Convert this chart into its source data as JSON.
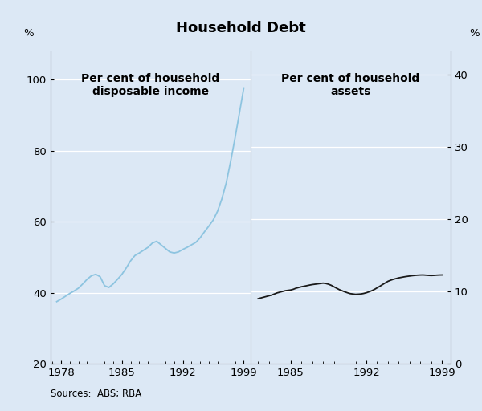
{
  "title": "Household Debt",
  "background_color": "#dce8f5",
  "left_label": "Per cent of household\ndisposable income",
  "right_label": "Per cent of household\nassets",
  "left_ylabel": "%",
  "right_ylabel": "%",
  "source_text": "Sources:  ABS; RBA",
  "left_ylim": [
    20,
    108
  ],
  "left_yticks": [
    20,
    40,
    60,
    80,
    100
  ],
  "right_ylim": [
    0,
    43.2
  ],
  "right_yticks": [
    0,
    10,
    20,
    30,
    40
  ],
  "left_xlim": [
    1976.8,
    1999.8
  ],
  "right_xlim": [
    1981.3,
    1999.8
  ],
  "left_xticks": [
    1978,
    1985,
    1992,
    1999
  ],
  "right_xticks": [
    1985,
    1992,
    1999
  ],
  "left_line_color": "#8dc4e0",
  "right_line_color": "#1a1a1a",
  "left_x": [
    1977.5,
    1978.0,
    1978.5,
    1979.0,
    1979.5,
    1980.0,
    1980.5,
    1981.0,
    1981.5,
    1982.0,
    1982.5,
    1983.0,
    1983.5,
    1984.0,
    1984.5,
    1985.0,
    1985.5,
    1986.0,
    1986.5,
    1987.0,
    1987.5,
    1988.0,
    1988.5,
    1989.0,
    1989.5,
    1990.0,
    1990.5,
    1991.0,
    1991.5,
    1992.0,
    1992.5,
    1993.0,
    1993.5,
    1994.0,
    1994.5,
    1995.0,
    1995.5,
    1996.0,
    1996.5,
    1997.0,
    1997.5,
    1998.0,
    1998.5,
    1999.0
  ],
  "left_y": [
    37.5,
    38.2,
    39.0,
    39.8,
    40.5,
    41.3,
    42.5,
    43.8,
    44.8,
    45.2,
    44.5,
    42.0,
    41.5,
    42.5,
    43.8,
    45.2,
    47.0,
    49.0,
    50.5,
    51.2,
    52.0,
    52.8,
    54.0,
    54.5,
    53.5,
    52.5,
    51.5,
    51.2,
    51.5,
    52.2,
    52.8,
    53.5,
    54.2,
    55.5,
    57.2,
    58.8,
    60.5,
    63.0,
    66.5,
    71.0,
    77.0,
    83.5,
    90.5,
    97.5
  ],
  "right_x": [
    1982.0,
    1982.25,
    1982.5,
    1982.75,
    1983.0,
    1983.25,
    1983.5,
    1983.75,
    1984.0,
    1984.25,
    1984.5,
    1984.75,
    1985.0,
    1985.25,
    1985.5,
    1985.75,
    1986.0,
    1986.25,
    1986.5,
    1986.75,
    1987.0,
    1987.25,
    1987.5,
    1987.75,
    1988.0,
    1988.25,
    1988.5,
    1988.75,
    1989.0,
    1989.25,
    1989.5,
    1989.75,
    1990.0,
    1990.25,
    1990.5,
    1990.75,
    1991.0,
    1991.25,
    1991.5,
    1991.75,
    1992.0,
    1992.25,
    1992.5,
    1992.75,
    1993.0,
    1993.25,
    1993.5,
    1993.75,
    1994.0,
    1994.25,
    1994.5,
    1994.75,
    1995.0,
    1995.25,
    1995.5,
    1995.75,
    1996.0,
    1996.25,
    1996.5,
    1996.75,
    1997.0,
    1997.25,
    1997.5,
    1997.75,
    1998.0,
    1998.25,
    1998.5,
    1998.75,
    1999.0
  ],
  "right_y": [
    9.0,
    9.1,
    9.2,
    9.3,
    9.4,
    9.5,
    9.65,
    9.8,
    9.9,
    10.0,
    10.1,
    10.15,
    10.2,
    10.3,
    10.45,
    10.55,
    10.65,
    10.72,
    10.8,
    10.88,
    10.95,
    11.0,
    11.05,
    11.1,
    11.15,
    11.1,
    11.0,
    10.85,
    10.65,
    10.45,
    10.25,
    10.1,
    9.95,
    9.82,
    9.7,
    9.65,
    9.6,
    9.62,
    9.65,
    9.72,
    9.82,
    9.95,
    10.1,
    10.28,
    10.5,
    10.72,
    10.95,
    11.18,
    11.4,
    11.55,
    11.68,
    11.78,
    11.88,
    11.95,
    12.02,
    12.08,
    12.13,
    12.18,
    12.22,
    12.25,
    12.27,
    12.28,
    12.25,
    12.22,
    12.2,
    12.22,
    12.25,
    12.27,
    12.28
  ]
}
